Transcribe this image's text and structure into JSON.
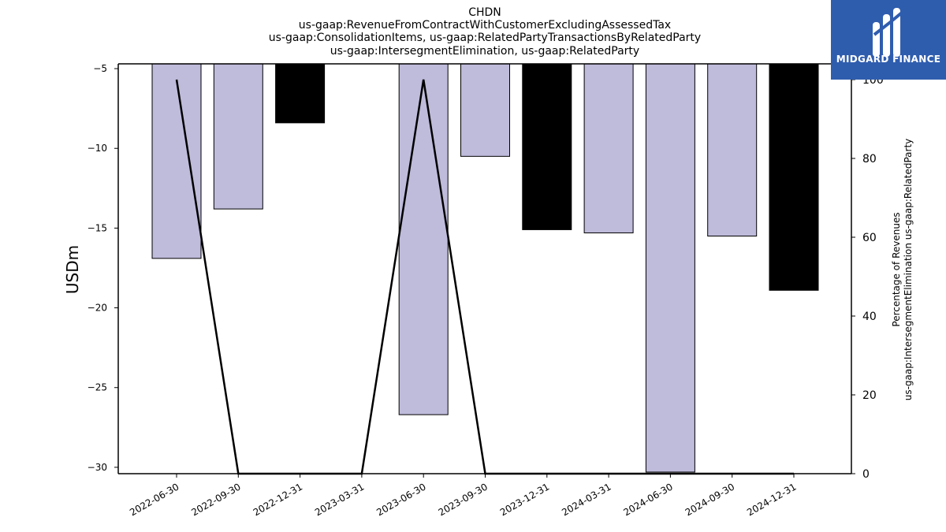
{
  "chart_data": {
    "type": "bar",
    "title_lines": [
      "CHDN",
      "us-gaap:RevenueFromContractWithCustomerExcludingAssessedTax",
      "us-gaap:ConsolidationItems, us-gaap:RelatedPartyTransactionsByRelatedParty",
      "us-gaap:IntersegmentElimination, us-gaap:RelatedParty"
    ],
    "ylabel": "USDm",
    "ylabel_right_lines": [
      "Percentage of Revenues",
      "us-gaap:IntersegmentElimination us-gaap:RelatedParty"
    ],
    "categories": [
      "2022-06-30",
      "2022-09-30",
      "2022-12-31",
      "2023-03-31",
      "2023-06-30",
      "2023-09-30",
      "2023-12-31",
      "2024-03-31",
      "2024-06-30",
      "2024-09-30",
      "2024-12-31"
    ],
    "bars": [
      {
        "category": "2022-06-30",
        "value": -16.9,
        "color": "#bebbdb"
      },
      {
        "category": "2022-09-30",
        "value": -13.8,
        "color": "#bebbdb"
      },
      {
        "category": "2022-12-31",
        "value": -8.4,
        "color": "#000000"
      },
      {
        "category": "2023-06-30",
        "value": -26.7,
        "color": "#bebbdb"
      },
      {
        "category": "2023-09-30",
        "value": -10.5,
        "color": "#bebbdb"
      },
      {
        "category": "2023-12-31",
        "value": -15.1,
        "color": "#000000"
      },
      {
        "category": "2024-03-31",
        "value": -15.3,
        "color": "#bebbdb"
      },
      {
        "category": "2024-06-30",
        "value": -30.3,
        "color": "#bebbdb"
      },
      {
        "category": "2024-09-30",
        "value": -15.5,
        "color": "#bebbdb"
      },
      {
        "category": "2024-12-31",
        "value": -18.9,
        "color": "#000000"
      }
    ],
    "bar_top": -4.7,
    "line_series": {
      "axis": "right",
      "color": "#000000",
      "values": [
        100,
        0,
        0,
        0,
        100,
        0,
        0,
        0,
        0,
        0,
        0
      ]
    },
    "ylim": [
      -30.4,
      -4.7
    ],
    "yticks": [
      -5,
      -10,
      -15,
      -20,
      -25,
      -30
    ],
    "ylim_right": [
      0,
      104
    ],
    "yticks_right": [
      0,
      20,
      40,
      60,
      80,
      100
    ],
    "grid": false
  },
  "logo": {
    "text": "MIDGARD FINANCE",
    "background": "#2f5dae"
  }
}
